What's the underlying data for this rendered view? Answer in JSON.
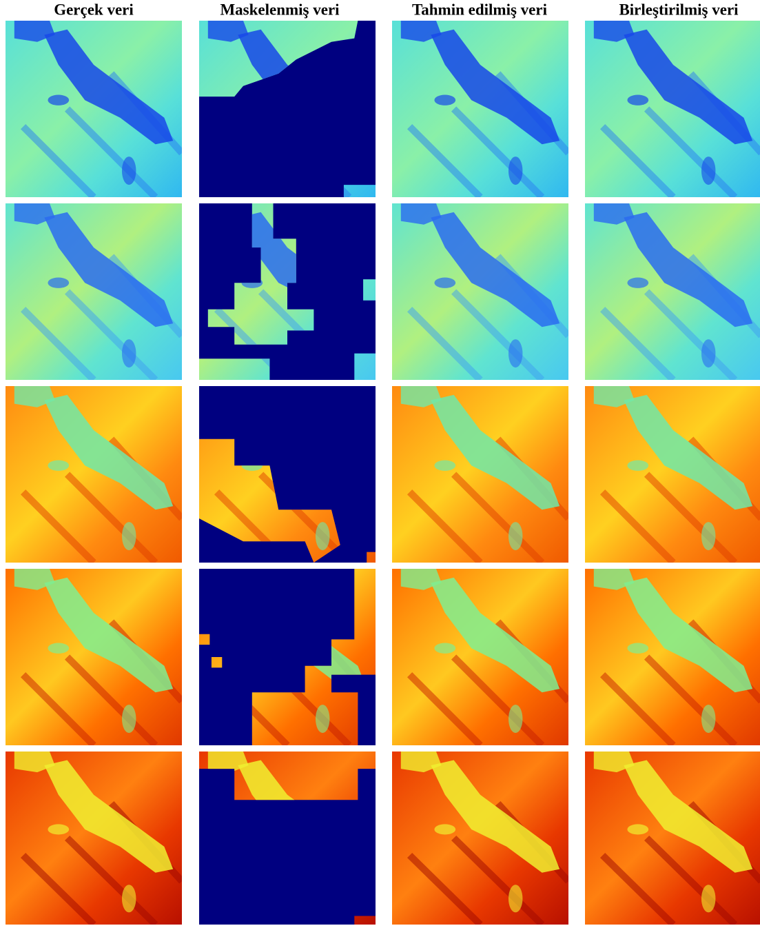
{
  "columns": [
    "Gerçek veri",
    "Maskelenmiş veri",
    "Tahmin edilmiş veri",
    "Birleştirilmiş veri"
  ]
}
